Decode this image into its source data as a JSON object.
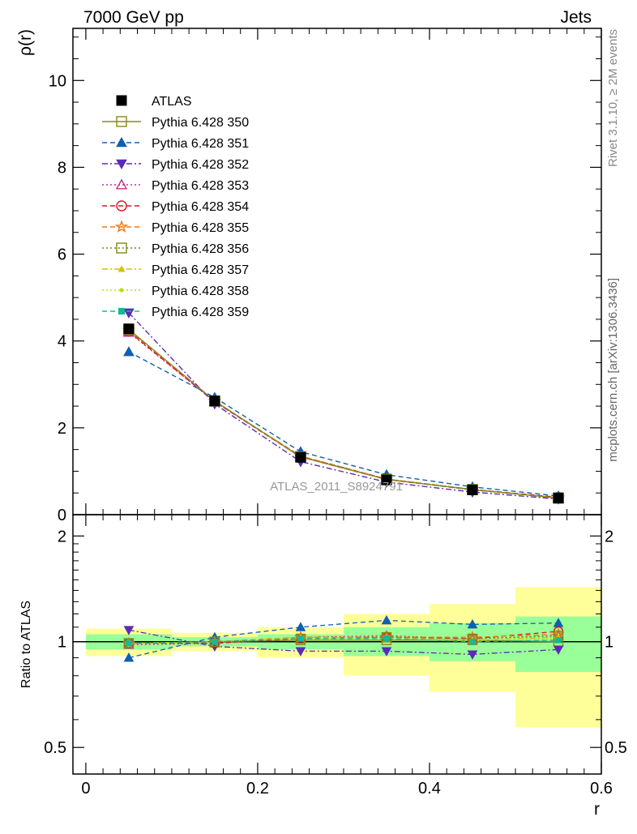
{
  "header": {
    "left": "7000 GeV pp",
    "right": "Jets"
  },
  "side_labels": {
    "rivet": "Rivet 3.1.10, ≥ 2M events",
    "source": "mcplots.cern.ch [arXiv:1306.3436]"
  },
  "watermark": "ATLAS_2011_S8924791",
  "chart_data": [
    {
      "type": "scatter",
      "panel": "main",
      "ylabel": "ρ(r)",
      "xlim": [
        -0.015,
        0.6
      ],
      "ylim": [
        0,
        11.2
      ],
      "y_ticks": [
        0,
        2,
        4,
        6,
        8,
        10
      ],
      "y_tick_labels": [
        "0",
        "2",
        "4",
        "6",
        "8",
        "10"
      ],
      "x": [
        0.05,
        0.15,
        0.25,
        0.35,
        0.45,
        0.55
      ],
      "series": [
        {
          "name": "ATLAS",
          "color": "#000000",
          "marker": "square-filled",
          "line": "none",
          "values": [
            4.28,
            2.62,
            1.32,
            0.8,
            0.57,
            0.38
          ]
        },
        {
          "name": "Pythia 6.428 350",
          "color": "#8a8a1a",
          "marker": "square-open",
          "line": "solid",
          "values": [
            4.27,
            2.62,
            1.33,
            0.81,
            0.58,
            0.38
          ]
        },
        {
          "name": "Pythia 6.428 351",
          "color": "#0f5fb4",
          "marker": "triangle-up-filled",
          "line": "dashed",
          "values": [
            3.75,
            2.7,
            1.45,
            0.92,
            0.64,
            0.43
          ]
        },
        {
          "name": "Pythia 6.428 352",
          "color": "#5a2bb5",
          "marker": "triangle-down-filled",
          "line": "dashdot",
          "values": [
            4.65,
            2.55,
            1.22,
            0.75,
            0.52,
            0.36
          ]
        },
        {
          "name": "Pythia 6.428 353",
          "color": "#c0308a",
          "marker": "triangle-up-open",
          "line": "dotted",
          "values": [
            4.2,
            2.6,
            1.34,
            0.82,
            0.57,
            0.39
          ]
        },
        {
          "name": "Pythia 6.428 354",
          "color": "#e01020",
          "marker": "circle-open",
          "line": "dashed",
          "values": [
            4.22,
            2.6,
            1.33,
            0.81,
            0.58,
            0.4
          ]
        },
        {
          "name": "Pythia 6.428 355",
          "color": "#f07818",
          "marker": "star-open",
          "line": "dashed",
          "values": [
            4.25,
            2.61,
            1.35,
            0.82,
            0.58,
            0.39
          ]
        },
        {
          "name": "Pythia 6.428 356",
          "color": "#7a8a10",
          "marker": "square-open",
          "line": "dotted",
          "values": [
            4.25,
            2.61,
            1.34,
            0.82,
            0.58,
            0.39
          ]
        },
        {
          "name": "Pythia 6.428 357",
          "color": "#d8c000",
          "marker": "triangle-up-small",
          "line": "dashdot",
          "values": [
            4.26,
            2.61,
            1.35,
            0.82,
            0.58,
            0.39
          ]
        },
        {
          "name": "Pythia 6.428 358",
          "color": "#b8e000",
          "marker": "dot",
          "line": "dotted",
          "values": [
            4.26,
            2.61,
            1.34,
            0.82,
            0.58,
            0.39
          ]
        },
        {
          "name": "Pythia 6.428 359",
          "color": "#18b890",
          "marker": "square-small",
          "line": "dashed",
          "values": [
            4.25,
            2.61,
            1.34,
            0.81,
            0.57,
            0.39
          ]
        }
      ]
    },
    {
      "type": "scatter",
      "panel": "ratio",
      "ylabel": "Ratio to ATLAS",
      "xlabel": "r",
      "xlim": [
        -0.015,
        0.6
      ],
      "ylim": [
        0.42,
        2.3
      ],
      "y_scale": "log",
      "y_ticks": [
        0.5,
        1,
        2
      ],
      "y_tick_labels": [
        "0.5",
        "1",
        "2"
      ],
      "x_ticks": [
        0,
        0.2,
        0.4,
        0.6
      ],
      "x_tick_labels": [
        "0",
        "0.2",
        "0.4",
        "0.6"
      ],
      "x": [
        0.05,
        0.15,
        0.25,
        0.35,
        0.45,
        0.55
      ],
      "bands": [
        {
          "x0": 0.0,
          "x1": 0.1,
          "yellow": [
            0.91,
            1.09
          ],
          "green": [
            0.95,
            1.05
          ]
        },
        {
          "x0": 0.1,
          "x1": 0.2,
          "yellow": [
            0.94,
            1.06
          ],
          "green": [
            0.97,
            1.03
          ]
        },
        {
          "x0": 0.2,
          "x1": 0.3,
          "yellow": [
            0.9,
            1.1
          ],
          "green": [
            0.95,
            1.05
          ]
        },
        {
          "x0": 0.3,
          "x1": 0.4,
          "yellow": [
            0.8,
            1.2
          ],
          "green": [
            0.91,
            1.1
          ]
        },
        {
          "x0": 0.4,
          "x1": 0.5,
          "yellow": [
            0.72,
            1.28
          ],
          "green": [
            0.88,
            1.13
          ]
        },
        {
          "x0": 0.5,
          "x1": 0.6,
          "yellow": [
            0.57,
            1.43
          ],
          "green": [
            0.82,
            1.18
          ]
        }
      ],
      "series": [
        {
          "name": "Pythia 6.428 350",
          "color": "#8a8a1a",
          "marker": "square-open",
          "line": "solid",
          "values": [
            0.99,
            1.0,
            1.01,
            1.01,
            1.01,
            1.0
          ]
        },
        {
          "name": "Pythia 6.428 351",
          "color": "#0f5fb4",
          "marker": "triangle-up-filled",
          "line": "dashed",
          "values": [
            0.9,
            1.03,
            1.1,
            1.15,
            1.12,
            1.13
          ]
        },
        {
          "name": "Pythia 6.428 352",
          "color": "#5a2bb5",
          "marker": "triangle-down-filled",
          "line": "dashdot",
          "values": [
            1.08,
            0.97,
            0.94,
            0.94,
            0.92,
            0.95
          ]
        },
        {
          "name": "Pythia 6.428 353",
          "color": "#c0308a",
          "marker": "triangle-up-open",
          "line": "dotted",
          "values": [
            0.98,
            0.99,
            1.03,
            1.04,
            1.02,
            1.04
          ]
        },
        {
          "name": "Pythia 6.428 354",
          "color": "#e01020",
          "marker": "circle-open",
          "line": "dashed",
          "values": [
            0.99,
            0.99,
            1.02,
            1.03,
            1.02,
            1.07
          ]
        },
        {
          "name": "Pythia 6.428 355",
          "color": "#f07818",
          "marker": "star-open",
          "line": "dashed",
          "values": [
            0.99,
            1.0,
            1.03,
            1.03,
            1.03,
            1.05
          ]
        },
        {
          "name": "Pythia 6.428 356",
          "color": "#7a8a10",
          "marker": "square-open",
          "line": "dotted",
          "values": [
            0.99,
            1.0,
            1.02,
            1.03,
            1.02,
            1.04
          ]
        },
        {
          "name": "Pythia 6.428 357",
          "color": "#d8c000",
          "marker": "triangle-up-small",
          "line": "dashdot",
          "values": [
            0.99,
            1.0,
            1.03,
            1.02,
            1.01,
            1.03
          ]
        },
        {
          "name": "Pythia 6.428 358",
          "color": "#b8e000",
          "marker": "dot",
          "line": "dotted",
          "values": [
            0.99,
            1.0,
            1.02,
            1.02,
            1.01,
            1.02
          ]
        },
        {
          "name": "Pythia 6.428 359",
          "color": "#18b890",
          "marker": "square-small",
          "line": "dashed",
          "values": [
            0.99,
            1.0,
            1.02,
            1.02,
            1.0,
            1.01
          ]
        }
      ]
    }
  ]
}
